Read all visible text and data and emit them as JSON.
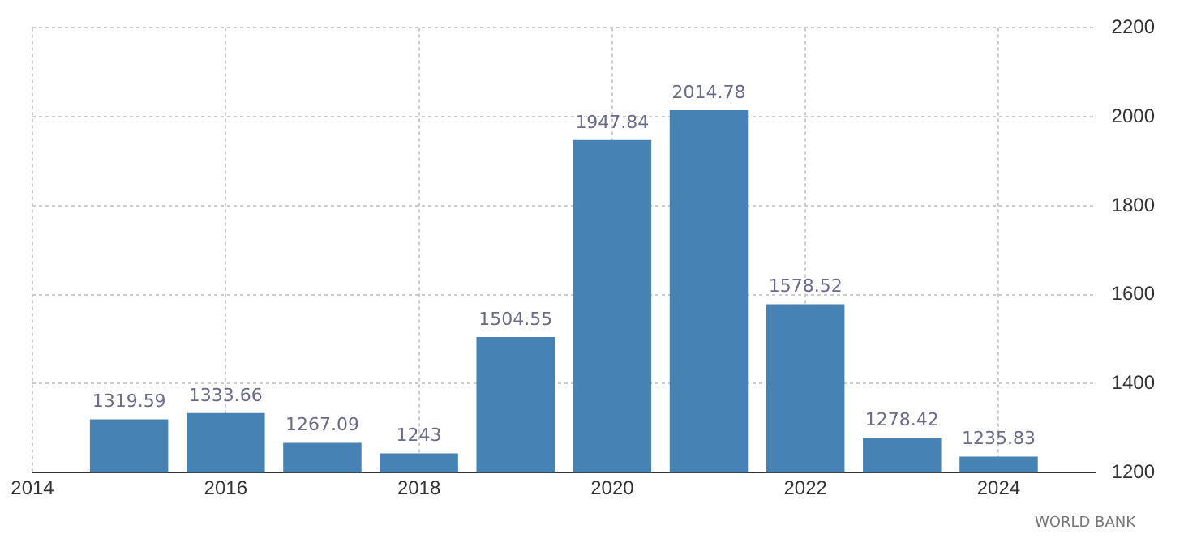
{
  "chart_data": {
    "type": "bar",
    "x": [
      2015,
      2016,
      2017,
      2018,
      2019,
      2020,
      2021,
      2022,
      2023,
      2024
    ],
    "values": [
      1319.59,
      1333.66,
      1267.09,
      1243,
      1504.55,
      1947.84,
      2014.78,
      1578.52,
      1278.42,
      1235.83
    ],
    "color": "#4682b4",
    "data_labels": true,
    "xlim": [
      2014,
      2025
    ],
    "xticks": [
      2014,
      2016,
      2018,
      2020,
      2022,
      2024
    ],
    "ylim": [
      1200,
      2200
    ],
    "yticks": [
      1200,
      1400,
      1600,
      1800,
      2000,
      2200
    ],
    "grid": true,
    "legend": false,
    "annotations": [
      "WORLD BANK"
    ]
  }
}
